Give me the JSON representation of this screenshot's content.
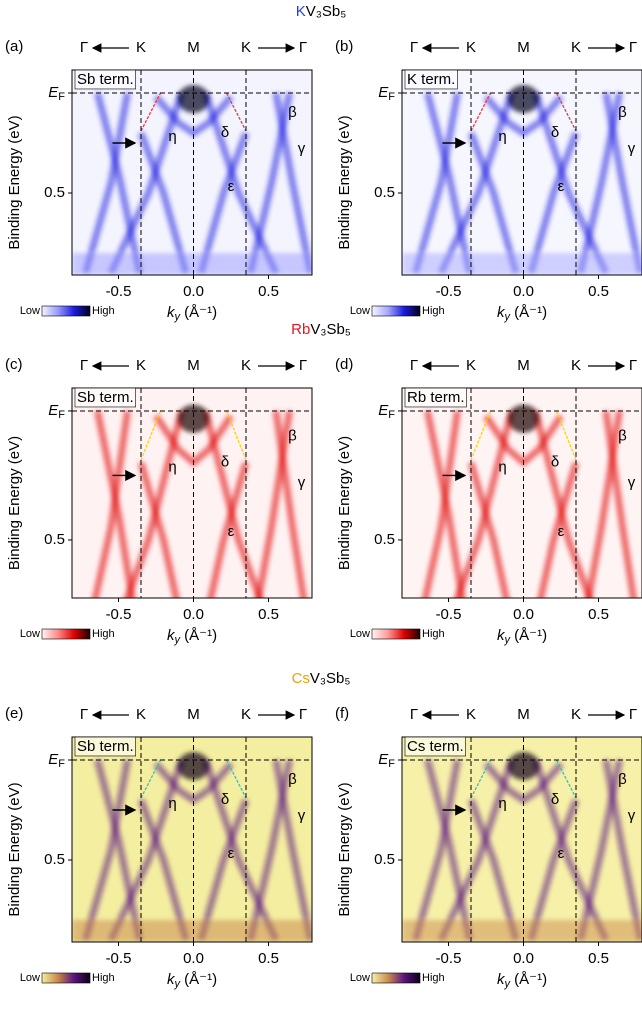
{
  "chart_data": [
    {
      "type": "heatmap",
      "title_parts": [
        "K",
        "V₃Sb₅"
      ],
      "title_color": "#1f3cff",
      "panel_label": "(a)",
      "termination": "Sb term.",
      "ylabel": "Binding Energy (eV)",
      "xlabel_parts": [
        "k",
        "y",
        " (Å⁻¹)"
      ],
      "xlim": [
        -0.81,
        0.79
      ],
      "ylim": [
        -0.115,
        0.91
      ],
      "xticks": [
        -0.5,
        {
          "value": 0,
          "label": "0.0"
        },
        0.5
      ],
      "yticks": [
        {
          "value": 0,
          "label": "EF"
        },
        0.5
      ],
      "kpoints": [
        {
          "label": "K",
          "value": -0.35
        },
        {
          "label": "M",
          "value": 0
        },
        {
          "label": "K",
          "value": 0.35
        }
      ],
      "gamma": [
        {
          "label": "Γ",
          "value": -0.73
        },
        {
          "label": "Γ",
          "value": 0.73
        }
      ],
      "band_labels": [
        "η",
        "δ",
        "β",
        "γ",
        "ε"
      ],
      "colorbar_labels": [
        "Low",
        "High"
      ],
      "colormap": [
        "#f4f4ff",
        "#9a9aff",
        "#1c1ce0",
        "#000018"
      ],
      "guide_color": "#ff3030"
    },
    {
      "type": "heatmap",
      "panel_label": "(b)",
      "termination": "K term.",
      "ylabel": "Binding Energy (eV)",
      "xlabel_parts": [
        "k",
        "y",
        " (Å⁻¹)"
      ],
      "xlim": [
        -0.81,
        0.79
      ],
      "ylim": [
        -0.115,
        0.91
      ],
      "xticks": [
        -0.5,
        {
          "value": 0,
          "label": "0.0"
        },
        0.5
      ],
      "yticks": [
        {
          "value": 0,
          "label": "EF"
        },
        0.5
      ],
      "kpoints": [
        {
          "label": "K",
          "value": -0.35
        },
        {
          "label": "M",
          "value": 0
        },
        {
          "label": "K",
          "value": 0.35
        }
      ],
      "gamma": [
        {
          "label": "Γ",
          "value": -0.73
        },
        {
          "label": "Γ",
          "value": 0.73
        }
      ],
      "band_labels": [
        "η",
        "δ",
        "β",
        "γ",
        "ε"
      ],
      "colorbar_labels": [
        "Low",
        "High"
      ],
      "colormap": [
        "#f6f6ff",
        "#a8a8ff",
        "#1c1ce0",
        "#000018"
      ],
      "guide_color": "#ff3030"
    },
    {
      "type": "heatmap",
      "title_parts": [
        "Rb",
        "V₃Sb₅"
      ],
      "title_color": "#e8141c",
      "panel_label": "(c)",
      "termination": "Sb term.",
      "ylabel": "Binding Energy (eV)",
      "xlabel_parts": [
        "k",
        "y",
        " (Å⁻¹)"
      ],
      "xlim": [
        -0.81,
        0.79
      ],
      "ylim": [
        -0.089,
        0.725
      ],
      "xticks": [
        -0.5,
        {
          "value": 0,
          "label": "0.0"
        },
        0.5
      ],
      "yticks": [
        {
          "value": 0,
          "label": "EF"
        },
        0.5
      ],
      "kpoints": [
        {
          "label": "K",
          "value": -0.35
        },
        {
          "label": "M",
          "value": 0
        },
        {
          "label": "K",
          "value": 0.35
        }
      ],
      "gamma": [
        {
          "label": "Γ",
          "value": -0.73
        },
        {
          "label": "Γ",
          "value": 0.73
        }
      ],
      "band_labels": [
        "η",
        "δ",
        "β",
        "γ",
        "ε"
      ],
      "colorbar_labels": [
        "Low",
        "High"
      ],
      "colormap": [
        "#fff2f2",
        "#ff8a8a",
        "#e00000",
        "#1a0000"
      ],
      "guide_color": "#ffd000"
    },
    {
      "type": "heatmap",
      "panel_label": "(d)",
      "termination": "Rb term.",
      "ylabel": "Binding Energy (eV)",
      "xlabel_parts": [
        "k",
        "y",
        " (Å⁻¹)"
      ],
      "xlim": [
        -0.81,
        0.79
      ],
      "ylim": [
        -0.089,
        0.725
      ],
      "xticks": [
        -0.5,
        {
          "value": 0,
          "label": "0.0"
        },
        0.5
      ],
      "yticks": [
        {
          "value": 0,
          "label": "EF"
        },
        0.5
      ],
      "kpoints": [
        {
          "label": "K",
          "value": -0.35
        },
        {
          "label": "M",
          "value": 0
        },
        {
          "label": "K",
          "value": 0.35
        }
      ],
      "gamma": [
        {
          "label": "Γ",
          "value": -0.73
        },
        {
          "label": "Γ",
          "value": 0.73
        }
      ],
      "band_labels": [
        "η",
        "δ",
        "β",
        "γ",
        "ε"
      ],
      "colorbar_labels": [
        "Low",
        "High"
      ],
      "colormap": [
        "#fff4f4",
        "#ff9a9a",
        "#e00000",
        "#1a0000"
      ],
      "guide_color": "#ffd000"
    },
    {
      "type": "heatmap",
      "title_parts": [
        "Cs",
        "V₃Sb₅"
      ],
      "title_color": "#f0a000",
      "panel_label": "(e)",
      "termination": "Sb term.",
      "ylabel": "Binding Energy (eV)",
      "xlabel_parts": [
        "k",
        "y",
        " (Å⁻¹)"
      ],
      "xlim": [
        -0.81,
        0.79
      ],
      "ylim": [
        -0.115,
        0.91
      ],
      "xticks": [
        -0.5,
        {
          "value": 0,
          "label": "0.0"
        },
        0.5
      ],
      "yticks": [
        {
          "value": 0,
          "label": "EF"
        },
        0.5
      ],
      "kpoints": [
        {
          "label": "K",
          "value": -0.35
        },
        {
          "label": "M",
          "value": 0
        },
        {
          "label": "K",
          "value": 0.35
        }
      ],
      "gamma": [
        {
          "label": "Γ",
          "value": -0.73
        },
        {
          "label": "Γ",
          "value": 0.73
        }
      ],
      "band_labels": [
        "η",
        "δ",
        "β",
        "γ",
        "ε"
      ],
      "colorbar_labels": [
        "Low",
        "High"
      ],
      "colormap": [
        "#f4eea0",
        "#c8864a",
        "#5a1480",
        "#0c0018"
      ],
      "guide_color": "#30c0c0"
    },
    {
      "type": "heatmap",
      "panel_label": "(f)",
      "termination": "Cs term.",
      "ylabel": "Binding Energy (eV)",
      "xlabel_parts": [
        "k",
        "y",
        " (Å⁻¹)"
      ],
      "xlim": [
        -0.81,
        0.79
      ],
      "ylim": [
        -0.115,
        0.91
      ],
      "xticks": [
        -0.5,
        {
          "value": 0,
          "label": "0.0"
        },
        0.5
      ],
      "yticks": [
        {
          "value": 0,
          "label": "EF"
        },
        0.5
      ],
      "kpoints": [
        {
          "label": "K",
          "value": -0.35
        },
        {
          "label": "M",
          "value": 0
        },
        {
          "label": "K",
          "value": 0.35
        }
      ],
      "gamma": [
        {
          "label": "Γ",
          "value": -0.73
        },
        {
          "label": "Γ",
          "value": 0.73
        }
      ],
      "band_labels": [
        "η",
        "δ",
        "β",
        "γ",
        "ε"
      ],
      "colorbar_labels": [
        "Low",
        "High"
      ],
      "colormap": [
        "#f6f0a8",
        "#cc8c50",
        "#5a1480",
        "#0c0018"
      ],
      "guide_color": "#30c0c0"
    }
  ]
}
